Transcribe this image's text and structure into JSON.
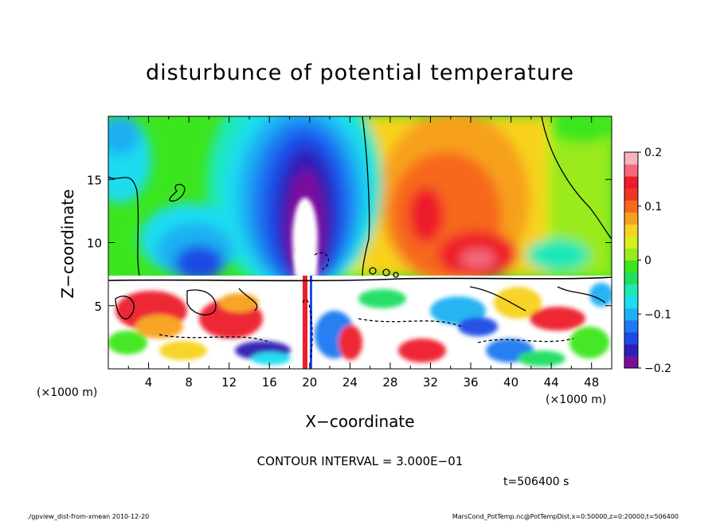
{
  "chart_data": {
    "type": "heatmap",
    "title": "disturbunce of potential temperature",
    "xlabel": "X−coordinate",
    "ylabel": "Z−coordinate",
    "x_unit": "(×1000 m)",
    "z_unit": "(×1000 m)",
    "xlim": [
      0,
      50
    ],
    "zlim": [
      0,
      20
    ],
    "x_ticks": [
      4,
      8,
      12,
      16,
      20,
      24,
      28,
      32,
      36,
      40,
      44,
      48
    ],
    "z_ticks": [
      5,
      10,
      15
    ],
    "colorbar": {
      "range": [
        -0.2,
        0.2
      ],
      "tick_values": [
        0.2,
        0.1,
        0,
        -0.1,
        -0.2
      ],
      "tick_labels": [
        "0.2",
        "0.1",
        "0",
        "−0.1",
        "−0.2"
      ],
      "colors": [
        "#7a0f9e",
        "#2f1fb4",
        "#1f49e6",
        "#1f79f2",
        "#1fb0f2",
        "#1fdcf0",
        "#1fe8b8",
        "#1fde60",
        "#3ce61f",
        "#9aea1f",
        "#d8ee1f",
        "#f7d21f",
        "#f7a01f",
        "#f7681f",
        "#f0361f",
        "#ee1c2a",
        "#f46a7a",
        "#f9b4be"
      ]
    },
    "contour_interval_text": "CONTOUR INTERVAL = 3.000E−01",
    "time_text": "t=506400 s"
  },
  "footer": {
    "left": "./gpview_dist-from-xmean  2010-12-20",
    "right": "MarsCond_PotTemp.nc@PotTempDist,x=0:50000,z=0:20000,t=506400"
  }
}
